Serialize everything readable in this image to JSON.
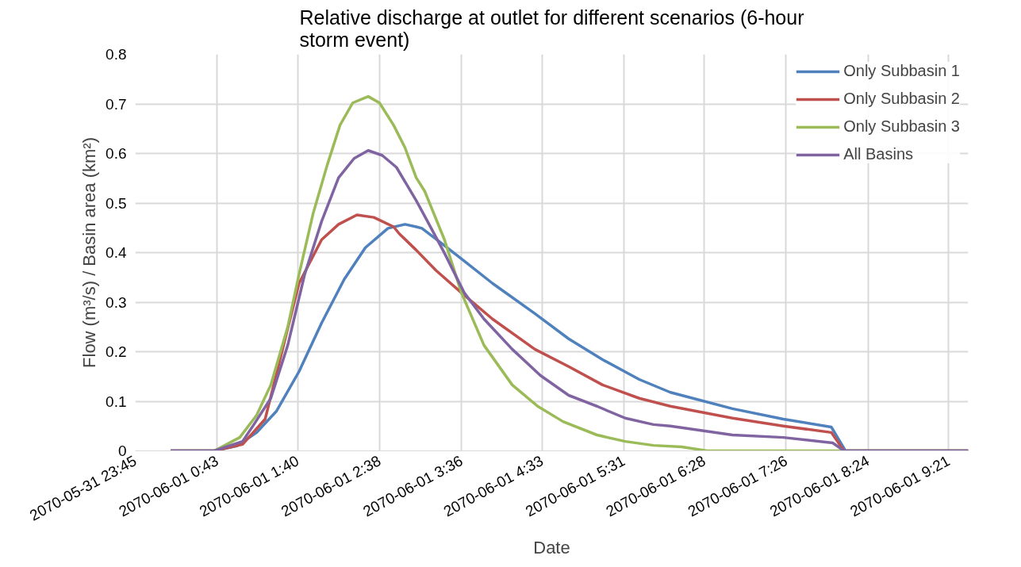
{
  "chart_data": {
    "type": "line",
    "title": "Relative discharge at outlet for different scenarios (6-hour storm event)",
    "xlabel": "Date",
    "ylabel": "Flow (m³/s) / Basin area (km²)",
    "xlim": [
      "2070-05-31T23:45",
      "2070-06-01T09:35"
    ],
    "xticks": [
      {
        "value": "2070-05-31T23:45",
        "label": "2070-05-31 23:45"
      },
      {
        "value": "2070-06-01T00:43",
        "label": "2070-06-01 0:43"
      },
      {
        "value": "2070-06-01T01:40",
        "label": "2070-06-01 1:40"
      },
      {
        "value": "2070-06-01T02:38",
        "label": "2070-06-01 2:38"
      },
      {
        "value": "2070-06-01T03:36",
        "label": "2070-06-01 3:36"
      },
      {
        "value": "2070-06-01T04:33",
        "label": "2070-06-01 4:33"
      },
      {
        "value": "2070-06-01T05:31",
        "label": "2070-06-01 5:31"
      },
      {
        "value": "2070-06-01T06:28",
        "label": "2070-06-01 6:28"
      },
      {
        "value": "2070-06-01T07:26",
        "label": "2070-06-01 7:26"
      },
      {
        "value": "2070-06-01T08:24",
        "label": "2070-06-01 8:24"
      },
      {
        "value": "2070-06-01T09:21",
        "label": "2070-06-01 9:21"
      }
    ],
    "ylim": [
      0,
      0.8
    ],
    "yticks": [
      0,
      0.1,
      0.2,
      0.3,
      0.4,
      0.5,
      0.6,
      0.7,
      0.8
    ],
    "grid": true,
    "legend": "top right",
    "marker": "none",
    "line_style": "solid",
    "series": [
      {
        "name": "Only Subbasin 1",
        "color": "#4f81bd",
        "x": [
          "2070-06-01T00:10",
          "2070-06-01T00:41",
          "2070-06-01T00:57",
          "2070-06-01T01:11",
          "2070-06-01T01:25",
          "2070-06-01T01:41",
          "2070-06-01T01:57",
          "2070-06-01T02:13",
          "2070-06-01T02:28",
          "2070-06-01T02:44",
          "2070-06-01T02:56",
          "2070-06-01T03:04",
          "2070-06-01T03:08",
          "2070-06-01T03:20",
          "2070-06-01T03:38",
          "2070-06-01T03:58",
          "2070-06-01T04:28",
          "2070-06-01T04:52",
          "2070-06-01T05:16",
          "2070-06-01T05:42",
          "2070-06-01T06:04",
          "2070-06-01T06:48",
          "2070-06-01T07:24",
          "2070-06-01T07:58",
          "2070-06-01T08:08",
          "2070-06-01T09:35"
        ],
        "values": [
          0,
          0,
          0.01,
          0.037,
          0.08,
          0.16,
          0.258,
          0.346,
          0.41,
          0.449,
          0.457,
          0.452,
          0.449,
          0.423,
          0.383,
          0.338,
          0.277,
          0.226,
          0.184,
          0.144,
          0.118,
          0.085,
          0.064,
          0.048,
          0,
          0
        ]
      },
      {
        "name": "Only Subbasin 2",
        "color": "#c0504d",
        "x": [
          "2070-06-01T00:10",
          "2070-06-01T00:41",
          "2070-06-01T01:01",
          "2070-06-01T01:17",
          "2070-06-01T01:41",
          "2070-06-01T01:57",
          "2070-06-01T02:09",
          "2070-06-01T02:22",
          "2070-06-01T02:34",
          "2070-06-01T02:48",
          "2070-06-01T02:52",
          "2070-06-01T03:04",
          "2070-06-01T03:18",
          "2070-06-01T03:36",
          "2070-06-01T03:58",
          "2070-06-01T04:28",
          "2070-06-01T04:52",
          "2070-06-01T05:16",
          "2070-06-01T05:42",
          "2070-06-01T06:04",
          "2070-06-01T06:48",
          "2070-06-01T07:24",
          "2070-06-01T07:58",
          "2070-06-01T08:07",
          "2070-06-01T09:35"
        ],
        "values": [
          0,
          0,
          0.013,
          0.064,
          0.338,
          0.426,
          0.457,
          0.476,
          0.471,
          0.452,
          0.438,
          0.405,
          0.364,
          0.319,
          0.266,
          0.205,
          0.17,
          0.133,
          0.106,
          0.09,
          0.066,
          0.05,
          0.037,
          0,
          0
        ]
      },
      {
        "name": "Only Subbasin 3",
        "color": "#9bbb59",
        "x": [
          "2070-06-01T00:10",
          "2070-06-01T00:41",
          "2070-06-01T00:59",
          "2070-06-01T01:11",
          "2070-06-01T01:21",
          "2070-06-01T01:33",
          "2070-06-01T01:41",
          "2070-06-01T01:51",
          "2070-06-01T02:01",
          "2070-06-01T02:10",
          "2070-06-01T02:19",
          "2070-06-01T02:30",
          "2070-06-01T02:38",
          "2070-06-01T02:48",
          "2070-06-01T02:56",
          "2070-06-01T03:04",
          "2070-06-01T03:10",
          "2070-06-01T03:24",
          "2070-06-01T03:36",
          "2070-06-01T03:52",
          "2070-06-01T04:12",
          "2070-06-01T04:30",
          "2070-06-01T04:48",
          "2070-06-01T05:12",
          "2070-06-01T05:32",
          "2070-06-01T05:52",
          "2070-06-01T06:12",
          "2070-06-01T06:30",
          "2070-06-01T09:35"
        ],
        "values": [
          0,
          0,
          0.027,
          0.072,
          0.133,
          0.25,
          0.356,
          0.479,
          0.577,
          0.657,
          0.702,
          0.715,
          0.702,
          0.657,
          0.612,
          0.551,
          0.524,
          0.426,
          0.319,
          0.213,
          0.133,
          0.09,
          0.059,
          0.032,
          0.019,
          0.011,
          0.008,
          0,
          0
        ]
      },
      {
        "name": "All Basins",
        "color": "#8064a2",
        "x": [
          "2070-06-01T00:10",
          "2070-06-01T00:41",
          "2070-06-01T01:01",
          "2070-06-01T01:09",
          "2070-06-01T01:21",
          "2070-06-01T01:33",
          "2070-06-01T01:45",
          "2070-06-01T01:57",
          "2070-06-01T02:09",
          "2070-06-01T02:20",
          "2070-06-01T02:30",
          "2070-06-01T02:40",
          "2070-06-01T02:50",
          "2070-06-01T03:04",
          "2070-06-01T03:12",
          "2070-06-01T03:24",
          "2070-06-01T03:38",
          "2070-06-01T03:52",
          "2070-06-01T04:12",
          "2070-06-01T04:32",
          "2070-06-01T04:52",
          "2070-06-01T05:12",
          "2070-06-01T05:32",
          "2070-06-01T05:52",
          "2070-06-01T06:04",
          "2070-06-01T06:48",
          "2070-06-01T07:24",
          "2070-06-01T07:59",
          "2070-06-01T08:07",
          "2070-06-01T09:35"
        ],
        "values": [
          0,
          0,
          0.019,
          0.053,
          0.106,
          0.213,
          0.356,
          0.463,
          0.551,
          0.59,
          0.606,
          0.596,
          0.572,
          0.505,
          0.463,
          0.399,
          0.319,
          0.266,
          0.205,
          0.152,
          0.112,
          0.09,
          0.066,
          0.053,
          0.05,
          0.032,
          0.027,
          0.016,
          0,
          0
        ]
      }
    ]
  }
}
